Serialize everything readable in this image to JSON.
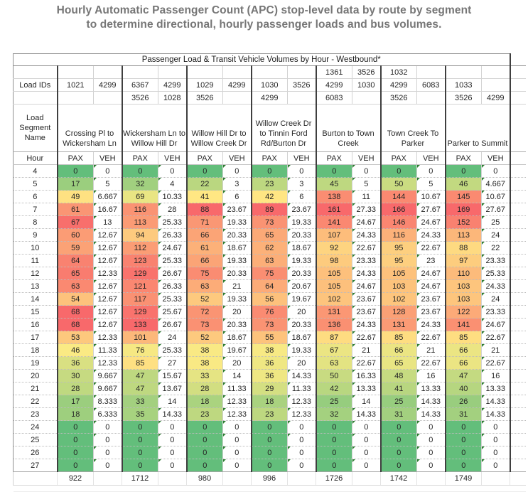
{
  "page": {
    "title_line1": "Hourly Automatic Passenger Count (APC) stop-level data by route by segment",
    "title_line2": "to determine directional, hourly passenger loads and bus volumes."
  },
  "table": {
    "title": "Passenger Load & Transit Vehicle Volumes by Hour - Westbound*",
    "load_ids_label": "Load IDs",
    "segment_header_label": "Load Segment Name",
    "hour_label": "Hour",
    "pax_label": "PAX",
    "veh_label": "VEH",
    "segments": [
      {
        "name": "Crossing Pl to Wickersham Ln",
        "pax_ids": [
          "",
          "1021",
          ""
        ],
        "veh_ids": [
          "",
          "4299",
          ""
        ]
      },
      {
        "name": "Wickersham Ln to Willow Hill Dr",
        "pax_ids": [
          "",
          "6367",
          "3526"
        ],
        "veh_ids": [
          "",
          "4299",
          "1028"
        ]
      },
      {
        "name": "Willow Hill Dr to Willow Creek Dr",
        "pax_ids": [
          "",
          "1029",
          "3526"
        ],
        "veh_ids": [
          "",
          "4299",
          ""
        ]
      },
      {
        "name": "Willow Creek Dr to Tinnin Ford Rd/Burton Dr",
        "pax_ids": [
          "",
          "1030",
          "4299"
        ],
        "veh_ids": [
          "",
          "3526",
          ""
        ]
      },
      {
        "name": "Burton to Town Creek",
        "pax_ids": [
          "1361",
          "4299",
          "6083"
        ],
        "veh_ids": [
          "3526",
          "1030",
          ""
        ]
      },
      {
        "name": "Town Creek To Parker",
        "pax_ids": [
          "1032",
          "4299",
          "3526"
        ],
        "veh_ids": [
          "",
          "6083",
          ""
        ]
      },
      {
        "name": "Parker to Summit",
        "pax_ids": [
          "",
          "1033",
          "3526"
        ],
        "veh_ids": [
          "",
          "",
          "4299"
        ]
      }
    ],
    "rows": [
      {
        "hour": "4",
        "values": [
          "0",
          "0",
          "0",
          "0",
          "0",
          "0",
          "0",
          "0",
          "0",
          "0",
          "0",
          "0",
          "0",
          "0"
        ]
      },
      {
        "hour": "5",
        "values": [
          "17",
          "5",
          "32",
          "4",
          "22",
          "3",
          "23",
          "3",
          "45",
          "5",
          "50",
          "5",
          "46",
          "4.667"
        ]
      },
      {
        "hour": "6",
        "values": [
          "49",
          "6.667",
          "69",
          "10.33",
          "41",
          "6",
          "42",
          "6",
          "138",
          "11",
          "144",
          "10.67",
          "145",
          "10.67"
        ]
      },
      {
        "hour": "7",
        "values": [
          "61",
          "16.67",
          "116",
          "28",
          "88",
          "23.67",
          "89",
          "23.67",
          "161",
          "27.33",
          "166",
          "27.67",
          "169",
          "27.67"
        ]
      },
      {
        "hour": "8",
        "values": [
          "67",
          "13",
          "113",
          "25.33",
          "71",
          "19.33",
          "73",
          "19.33",
          "141",
          "24.67",
          "146",
          "24.67",
          "152",
          "25"
        ]
      },
      {
        "hour": "9",
        "values": [
          "60",
          "12.67",
          "94",
          "26.33",
          "66",
          "20.33",
          "65",
          "20.33",
          "107",
          "24.33",
          "116",
          "24.33",
          "113",
          "24"
        ]
      },
      {
        "hour": "10",
        "values": [
          "59",
          "12.67",
          "112",
          "24.67",
          "61",
          "18.67",
          "62",
          "18.67",
          "92",
          "22.67",
          "95",
          "22.67",
          "88",
          "22"
        ]
      },
      {
        "hour": "11",
        "values": [
          "64",
          "12.67",
          "123",
          "25.33",
          "66",
          "19.33",
          "63",
          "19.33",
          "98",
          "23.33",
          "95",
          "23",
          "97",
          "23.33"
        ]
      },
      {
        "hour": "12",
        "values": [
          "65",
          "12.33",
          "129",
          "26.67",
          "75",
          "20.33",
          "75",
          "20.33",
          "105",
          "24.33",
          "105",
          "24.67",
          "110",
          "25.33"
        ]
      },
      {
        "hour": "13",
        "values": [
          "63",
          "12.67",
          "121",
          "26.33",
          "63",
          "21",
          "64",
          "20.67",
          "105",
          "24.67",
          "103",
          "24.67",
          "103",
          "24.33"
        ]
      },
      {
        "hour": "14",
        "values": [
          "54",
          "12.67",
          "117",
          "25.33",
          "52",
          "19.33",
          "56",
          "19.67",
          "102",
          "23.67",
          "102",
          "23.67",
          "103",
          "24"
        ]
      },
      {
        "hour": "15",
        "values": [
          "68",
          "12.67",
          "129",
          "25.67",
          "72",
          "20",
          "76",
          "20",
          "131",
          "23.67",
          "128",
          "23.67",
          "122",
          "23.33"
        ]
      },
      {
        "hour": "16",
        "values": [
          "68",
          "12.67",
          "133",
          "26.67",
          "73",
          "20.33",
          "73",
          "20.33",
          "136",
          "24.33",
          "131",
          "24.33",
          "141",
          "24.67"
        ]
      },
      {
        "hour": "17",
        "values": [
          "53",
          "12.33",
          "101",
          "24",
          "52",
          "18.67",
          "55",
          "18.67",
          "87",
          "22.67",
          "85",
          "22.67",
          "85",
          "22.67"
        ]
      },
      {
        "hour": "18",
        "values": [
          "46",
          "11.33",
          "76",
          "25.33",
          "38",
          "19.67",
          "38",
          "19.33",
          "67",
          "21",
          "66",
          "21",
          "66",
          "21"
        ]
      },
      {
        "hour": "19",
        "values": [
          "36",
          "12.33",
          "85",
          "27",
          "38",
          "20",
          "36",
          "20",
          "63",
          "22.67",
          "65",
          "22.67",
          "66",
          "22.67"
        ]
      },
      {
        "hour": "20",
        "values": [
          "30",
          "9.667",
          "47",
          "15.67",
          "33",
          "14",
          "36",
          "14.33",
          "50",
          "16.33",
          "48",
          "16",
          "47",
          "16"
        ]
      },
      {
        "hour": "21",
        "values": [
          "28",
          "9.667",
          "47",
          "13.67",
          "28",
          "11.33",
          "29",
          "11.33",
          "42",
          "13.33",
          "41",
          "13.33",
          "40",
          "13.33"
        ]
      },
      {
        "hour": "22",
        "values": [
          "17",
          "8.333",
          "33",
          "14",
          "18",
          "12.33",
          "18",
          "12.33",
          "25",
          "14",
          "25",
          "14.33",
          "26",
          "14.33"
        ]
      },
      {
        "hour": "23",
        "values": [
          "18",
          "6.333",
          "35",
          "14.33",
          "23",
          "12.33",
          "23",
          "12.33",
          "32",
          "14.33",
          "31",
          "14.33",
          "31",
          "14.33"
        ]
      },
      {
        "hour": "24",
        "values": [
          "0",
          "0",
          "0",
          "0",
          "0",
          "0",
          "0",
          "0",
          "0",
          "0",
          "0",
          "0",
          "0",
          "0"
        ]
      },
      {
        "hour": "25",
        "values": [
          "0",
          "0",
          "0",
          "0",
          "0",
          "0",
          "0",
          "0",
          "0",
          "0",
          "0",
          "0",
          "0",
          "0"
        ]
      },
      {
        "hour": "26",
        "values": [
          "0",
          "0",
          "0",
          "0",
          "0",
          "0",
          "0",
          "0",
          "0",
          "0",
          "0",
          "0",
          "0",
          "0"
        ]
      },
      {
        "hour": "27",
        "values": [
          "0",
          "0",
          "0",
          "0",
          "0",
          "0",
          "0",
          "0",
          "0",
          "0",
          "0",
          "0",
          "0",
          "0"
        ]
      }
    ],
    "totals": [
      "922",
      "1712",
      "980",
      "996",
      "1726",
      "1742",
      "1749"
    ],
    "color_scale": {
      "min": "#63BE7B",
      "mid": "#FFEB84",
      "max": "#F8696B"
    },
    "triangle_color": "#2E7D32"
  }
}
